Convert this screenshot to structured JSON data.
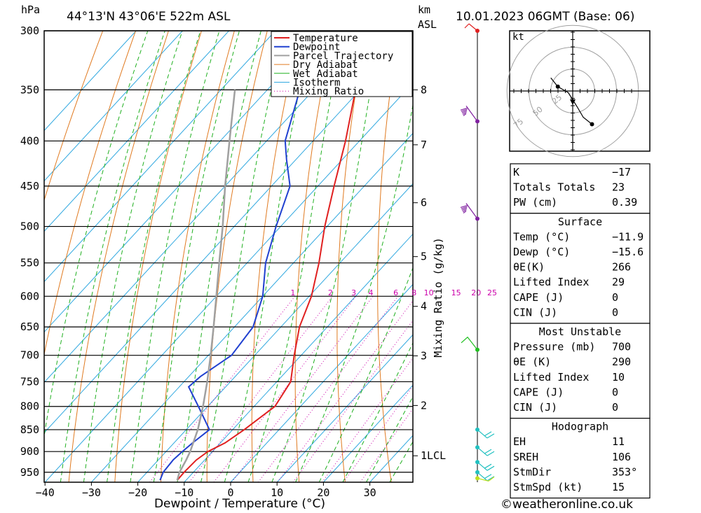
{
  "header": {
    "location": "44°13'N  43°06'E  522m  ASL",
    "datetime": "10.01.2023  06GMT  (Base: 06)",
    "hpa_label": "hPa",
    "km_label": "km",
    "asl_label": "ASL"
  },
  "chart_data": {
    "type": "skew-t",
    "xlabel": "Dewpoint / Temperature (°C)",
    "ylabel_right": "Mixing Ratio (g/kg)",
    "x_ticks": [
      -40,
      -30,
      -20,
      -10,
      0,
      10,
      20,
      30
    ],
    "x_tick_labels": [
      "−40",
      "−30",
      "−20",
      "−10",
      "0",
      "10",
      "20",
      "30"
    ],
    "pressure_levels": [
      300,
      350,
      400,
      450,
      500,
      550,
      600,
      650,
      700,
      750,
      800,
      850,
      900,
      950
    ],
    "km_ticks": [
      {
        "km": "8",
        "p": 350
      },
      {
        "km": "7",
        "p": 404
      },
      {
        "km": "6",
        "p": 470
      },
      {
        "km": "5",
        "p": 541
      },
      {
        "km": "4",
        "p": 616
      },
      {
        "km": "3",
        "p": 701
      },
      {
        "km": "2",
        "p": 798
      },
      {
        "km": "1LCL",
        "p": 910
      }
    ],
    "mixing_ratio_labels": [
      "1",
      "2",
      "3",
      "4",
      "6",
      "8",
      "10",
      "15",
      "20",
      "25"
    ],
    "legend": [
      "Temperature",
      "Dewpoint",
      "Parcel Trajectory",
      "Dry Adiabat",
      "Wet Adiabat",
      "Isotherm",
      "Mixing Ratio"
    ],
    "series": [
      {
        "name": "Temperature",
        "color": "#e02020",
        "p": [
          970,
          950,
          920,
          900,
          880,
          850,
          800,
          750,
          700,
          650,
          600,
          550,
          500,
          450,
          400,
          350,
          300
        ],
        "t": [
          -11.9,
          -12.0,
          -11.8,
          -11.0,
          -9.0,
          -7.5,
          -5.5,
          -7.0,
          -11.5,
          -16.0,
          -19.5,
          -24.5,
          -30.5,
          -36.5,
          -43.0,
          -51.0,
          -60.0
        ]
      },
      {
        "name": "Dewpoint",
        "color": "#2040d0",
        "p": [
          970,
          950,
          920,
          900,
          880,
          850,
          800,
          760,
          740,
          700,
          650,
          600,
          550,
          500,
          450,
          420,
          400,
          350,
          300
        ],
        "t": [
          -15.6,
          -16.5,
          -16.8,
          -16.5,
          -16.0,
          -15.0,
          -22.0,
          -28.0,
          -27.5,
          -25.0,
          -26.0,
          -30.0,
          -36.0,
          -41.0,
          -46.0,
          -52.0,
          -56.0,
          -63.0,
          -71.0
        ]
      },
      {
        "name": "Parcel Trajectory",
        "color": "#a0a0a0",
        "p": [
          970,
          950,
          920,
          900,
          850,
          800,
          750,
          700,
          650,
          600,
          550,
          500,
          450,
          400,
          350
        ],
        "t": [
          -11.9,
          -13.0,
          -14.0,
          -14.8,
          -17.5,
          -21.0,
          -25.0,
          -29.5,
          -34.5,
          -40.0,
          -46.0,
          -52.5,
          -60.0,
          -68.0,
          -77.0
        ]
      }
    ]
  },
  "hodograph": {
    "unit_label": "kt",
    "ring_labels": [
      "25",
      "50",
      "75"
    ],
    "points": [
      [
        -25,
        15
      ],
      [
        -17,
        5
      ],
      [
        -5,
        -2
      ],
      [
        0,
        -10
      ],
      [
        5,
        -18
      ],
      [
        12,
        -30
      ],
      [
        22,
        -38
      ]
    ]
  },
  "wind_barbs": [
    {
      "p": 300,
      "color": "#e02020",
      "speed": 10
    },
    {
      "p": 380,
      "color": "#8020a0",
      "speed": 50
    },
    {
      "p": 490,
      "color": "#8020a0",
      "speed": 50
    },
    {
      "p": 690,
      "color": "#20c020",
      "speed": 15
    },
    {
      "p": 850,
      "color": "#20c0c0",
      "speed": 20
    },
    {
      "p": 890,
      "color": "#20c0c0",
      "speed": 20
    },
    {
      "p": 925,
      "color": "#20c0c0",
      "speed": 20
    },
    {
      "p": 950,
      "color": "#20c0c0",
      "speed": 20
    },
    {
      "p": 965,
      "color": "#c0e020",
      "speed": 10
    }
  ],
  "indices": {
    "top": [
      {
        "label": "K",
        "value": "−17"
      },
      {
        "label": "Totals Totals",
        "value": "23"
      },
      {
        "label": "PW (cm)",
        "value": "0.39"
      }
    ],
    "surface_title": "Surface",
    "surface": [
      {
        "label": "Temp (°C)",
        "value": "−11.9"
      },
      {
        "label": "Dewp (°C)",
        "value": "−15.6"
      },
      {
        "label": "θE(K)",
        "value": "266"
      },
      {
        "label": "Lifted Index",
        "value": "29"
      },
      {
        "label": "CAPE (J)",
        "value": "0"
      },
      {
        "label": "CIN (J)",
        "value": "0"
      }
    ],
    "unstable_title": "Most Unstable",
    "unstable": [
      {
        "label": "Pressure (mb)",
        "value": "700"
      },
      {
        "label": "θE (K)",
        "value": "290"
      },
      {
        "label": "Lifted Index",
        "value": "10"
      },
      {
        "label": "CAPE (J)",
        "value": "0"
      },
      {
        "label": "CIN (J)",
        "value": "0"
      }
    ],
    "hodo_title": "Hodograph",
    "hodo": [
      {
        "label": "EH",
        "value": "11"
      },
      {
        "label": "SREH",
        "value": "106"
      },
      {
        "label": "StmDir",
        "value": "353°"
      },
      {
        "label": "StmSpd (kt)",
        "value": "15"
      }
    ]
  },
  "footer": {
    "credit": "©weatheronline.co.uk"
  }
}
